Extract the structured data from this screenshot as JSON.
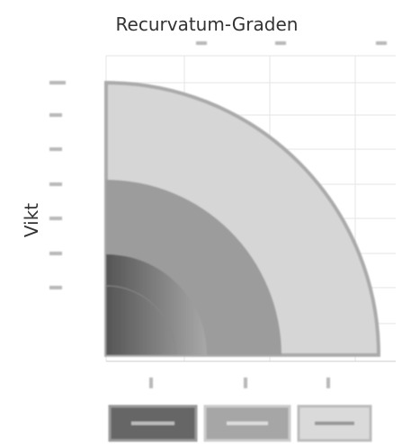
{
  "title": "Recurvatum-Graden",
  "y_axis_label": "Vikt"
}
